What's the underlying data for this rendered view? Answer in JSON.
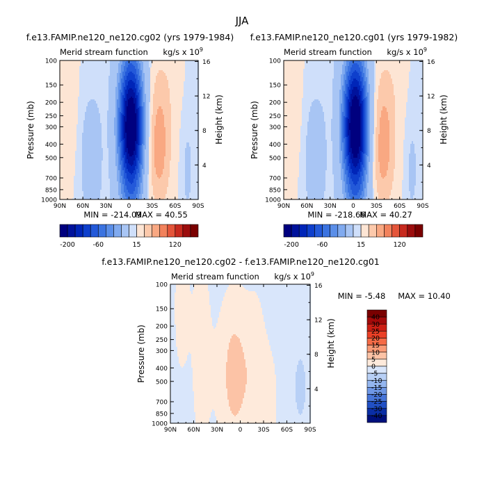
{
  "page_title": "JJA",
  "chart_data": [
    {
      "type": "heatmap",
      "title": "f.e13.FAMIP.ne120_ne120.cg02 (yrs 1979-1984)",
      "subtitle_left": "Merid stream function",
      "units": "kg/s x 10",
      "units_exp": "9",
      "ylabel": "Pressure (mb)",
      "y2label": "Height (km)",
      "x_ticks": [
        "90N",
        "60N",
        "30N",
        "0",
        "30S",
        "60S",
        "90S"
      ],
      "y_ticks": [
        "100",
        "150",
        "200",
        "250",
        "300",
        "400",
        "500",
        "700",
        "850",
        "1000"
      ],
      "y2_ticks": [
        "16",
        "12",
        "8",
        "4"
      ],
      "min_label": "MIN = -214.09",
      "max_label": "MAX = 40.55",
      "min": -214.09,
      "max": 40.55,
      "colorbar_labels": [
        "-200",
        "-60",
        "15",
        "120"
      ]
    },
    {
      "type": "heatmap",
      "title": "f.e13.FAMIP.ne120_ne120.cg01 (yrs 1979-1982)",
      "subtitle_left": "Merid stream function",
      "units": "kg/s x 10",
      "units_exp": "9",
      "ylabel": "Pressure (mb)",
      "y2label": "Height (km)",
      "x_ticks": [
        "90N",
        "60N",
        "30N",
        "0",
        "30S",
        "60S",
        "90S"
      ],
      "y_ticks": [
        "100",
        "150",
        "200",
        "250",
        "300",
        "400",
        "500",
        "700",
        "850",
        "1000"
      ],
      "y2_ticks": [
        "16",
        "12",
        "8",
        "4"
      ],
      "min_label": "MIN = -218.66",
      "max_label": "MAX = 40.27",
      "min": -218.66,
      "max": 40.27,
      "colorbar_labels": [
        "-200",
        "-60",
        "15",
        "120"
      ]
    },
    {
      "type": "heatmap",
      "title": "f.e13.FAMIP.ne120_ne120.cg02 - f.e13.FAMIP.ne120_ne120.cg01",
      "subtitle_left": "Merid stream function",
      "units": "kg/s x 10",
      "units_exp": "9",
      "ylabel": "Pressure (mb)",
      "y2label": "Height (km)",
      "x_ticks": [
        "90N",
        "60N",
        "30N",
        "0",
        "30S",
        "60S",
        "90S"
      ],
      "y_ticks": [
        "100",
        "150",
        "200",
        "250",
        "300",
        "400",
        "500",
        "700",
        "850",
        "1000"
      ],
      "y2_ticks": [
        "16",
        "12",
        "8",
        "4"
      ],
      "min_label": "MIN = -5.48",
      "max_label": "MAX = 10.40",
      "min": -5.48,
      "max": 10.4,
      "colorbar_labels": [
        "40",
        "30",
        "25",
        "20",
        "15",
        "10",
        "5",
        "0",
        "-5",
        "-10",
        "-15",
        "-20",
        "-25",
        "-30",
        "-40"
      ]
    }
  ],
  "colors": {
    "neg": [
      "#00007f",
      "#00129c",
      "#0025b8",
      "#0e3fcc",
      "#2359d9",
      "#3b73e0",
      "#5a8ee8",
      "#80aaef",
      "#a8c5f4",
      "#cfdffa"
    ],
    "pos": [
      "#fde5d4",
      "#fcc9ab",
      "#f9a882",
      "#f2825c",
      "#e4553a",
      "#c72a1e",
      "#9c0d0d",
      "#7a0000"
    ],
    "diff_colorbar": [
      "#7a0000",
      "#a30a0a",
      "#cc1f14",
      "#ea4026",
      "#f56b46",
      "#f99a76",
      "#fcc3a6",
      "#feeadb",
      "#d9e6fb",
      "#b8d0f6",
      "#94b6ef",
      "#6e97e5",
      "#4775d8",
      "#2150c4",
      "#0a2ea5",
      "#00107c"
    ]
  }
}
